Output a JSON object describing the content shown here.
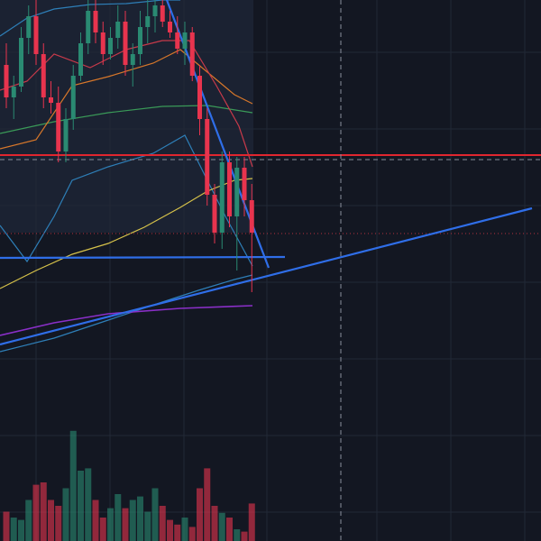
{
  "chart_data": {
    "type": "candlestick",
    "up_color": "#2a8a72",
    "down_color": "#e8344e",
    "ylim": [
      0,
      100
    ],
    "volume_ylim": [
      0,
      100
    ],
    "candles": [
      {
        "open": 88,
        "high": 92,
        "low": 80,
        "close": 82
      },
      {
        "open": 82,
        "high": 86,
        "low": 78,
        "close": 84
      },
      {
        "open": 84,
        "high": 95,
        "low": 83,
        "close": 93
      },
      {
        "open": 93,
        "high": 99,
        "low": 90,
        "close": 97
      },
      {
        "open": 97,
        "high": 100,
        "low": 88,
        "close": 90
      },
      {
        "open": 90,
        "high": 92,
        "low": 80,
        "close": 82
      },
      {
        "open": 82,
        "high": 85,
        "low": 79,
        "close": 81
      },
      {
        "open": 81,
        "high": 84,
        "low": 70,
        "close": 72
      },
      {
        "open": 72,
        "high": 80,
        "low": 70,
        "close": 78
      },
      {
        "open": 78,
        "high": 88,
        "low": 76,
        "close": 86
      },
      {
        "open": 86,
        "high": 94,
        "low": 85,
        "close": 92
      },
      {
        "open": 92,
        "high": 100,
        "low": 90,
        "close": 98
      },
      {
        "open": 98,
        "high": 100,
        "low": 92,
        "close": 94
      },
      {
        "open": 94,
        "high": 96,
        "low": 88,
        "close": 90
      },
      {
        "open": 90,
        "high": 95,
        "low": 89,
        "close": 93
      },
      {
        "open": 93,
        "high": 99,
        "low": 91,
        "close": 96
      },
      {
        "open": 96,
        "high": 98,
        "low": 86,
        "close": 88
      },
      {
        "open": 88,
        "high": 92,
        "low": 84,
        "close": 90
      },
      {
        "open": 90,
        "high": 98,
        "low": 88,
        "close": 95
      },
      {
        "open": 95,
        "high": 100,
        "low": 92,
        "close": 97
      },
      {
        "open": 97,
        "high": 100,
        "low": 94,
        "close": 99
      },
      {
        "open": 99,
        "high": 100,
        "low": 95,
        "close": 96
      },
      {
        "open": 96,
        "high": 98,
        "low": 93,
        "close": 94
      },
      {
        "open": 94,
        "high": 97,
        "low": 90,
        "close": 91
      },
      {
        "open": 91,
        "high": 96,
        "low": 88,
        "close": 94
      },
      {
        "open": 94,
        "high": 95,
        "low": 85,
        "close": 86
      },
      {
        "open": 86,
        "high": 88,
        "low": 75,
        "close": 78
      },
      {
        "open": 78,
        "high": 80,
        "low": 62,
        "close": 64
      },
      {
        "open": 64,
        "high": 66,
        "low": 55,
        "close": 57
      },
      {
        "open": 57,
        "high": 72,
        "low": 54,
        "close": 70
      },
      {
        "open": 70,
        "high": 72,
        "low": 58,
        "close": 60
      },
      {
        "open": 60,
        "high": 71,
        "low": 50,
        "close": 69
      },
      {
        "open": 69,
        "high": 71,
        "low": 60,
        "close": 63
      },
      {
        "open": 63,
        "high": 66,
        "low": 46,
        "close": 57
      }
    ],
    "volume": [
      25,
      20,
      18,
      35,
      48,
      50,
      35,
      30,
      45,
      94,
      60,
      62,
      35,
      20,
      28,
      40,
      28,
      35,
      38,
      25,
      45,
      30,
      18,
      14,
      20,
      12,
      45,
      62,
      30,
      24,
      20,
      10,
      8,
      32
    ]
  }
}
